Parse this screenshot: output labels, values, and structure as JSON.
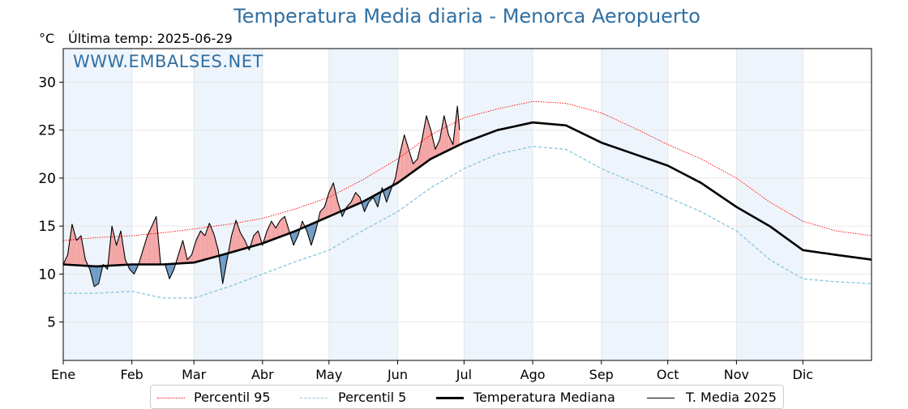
{
  "title": "Temperatura Media diaria - Menorca Aeropuerto",
  "unit": "°C",
  "last_temp_label": "Última temp: 2025-06-29",
  "watermark": "WWW.EMBALSES.NET",
  "legend": {
    "p95": "Percentil 95",
    "p5": "Percentil 5",
    "median": "Temperatura Mediana",
    "current": "T. Media 2025"
  },
  "colors": {
    "p95": "#ff0000",
    "p5": "#87c5e0",
    "median": "#000000",
    "current": "#000000",
    "above_fill": "#f4a6a6",
    "below_fill": "#6f9cc4",
    "month_band": "#eef4fb"
  },
  "chart_data": {
    "type": "line",
    "title": "Temperatura Media diaria - Menorca Aeropuerto",
    "xlabel": "",
    "ylabel": "°C",
    "ylim": [
      1,
      33.5
    ],
    "yticks": [
      5,
      10,
      15,
      20,
      25,
      30
    ],
    "xlim": [
      0,
      365
    ],
    "month_ticks": [
      {
        "label": "Ene",
        "day": 0
      },
      {
        "label": "Feb",
        "day": 31
      },
      {
        "label": "Mar",
        "day": 59
      },
      {
        "label": "Abr",
        "day": 90
      },
      {
        "label": "May",
        "day": 120
      },
      {
        "label": "Jun",
        "day": 151
      },
      {
        "label": "Jul",
        "day": 181
      },
      {
        "label": "Ago",
        "day": 212
      },
      {
        "label": "Sep",
        "day": 243
      },
      {
        "label": "Oct",
        "day": 273
      },
      {
        "label": "Nov",
        "day": 304
      },
      {
        "label": "Dic",
        "day": 334
      }
    ],
    "grid": true,
    "legend_position": "bottom",
    "series": [
      {
        "name": "Percentil 95",
        "style": "dotted",
        "x": [
          0,
          15,
          31,
          45,
          59,
          75,
          90,
          105,
          120,
          135,
          151,
          166,
          181,
          196,
          212,
          227,
          243,
          258,
          273,
          288,
          304,
          319,
          334,
          349,
          365
        ],
        "y": [
          13.5,
          13.8,
          14.0,
          14.3,
          14.7,
          15.2,
          15.8,
          16.8,
          18.0,
          19.8,
          22.0,
          24.5,
          26.3,
          27.2,
          28.0,
          27.8,
          26.8,
          25.2,
          23.5,
          22.0,
          20.0,
          17.5,
          15.5,
          14.5,
          14.0
        ]
      },
      {
        "name": "Percentil 5",
        "style": "dashed",
        "x": [
          0,
          15,
          31,
          45,
          59,
          75,
          90,
          105,
          120,
          135,
          151,
          166,
          181,
          196,
          212,
          227,
          243,
          258,
          273,
          288,
          304,
          319,
          334,
          349,
          365
        ],
        "y": [
          8.0,
          8.0,
          8.2,
          7.5,
          7.5,
          8.7,
          10.0,
          11.3,
          12.5,
          14.5,
          16.5,
          19.0,
          21.0,
          22.5,
          23.3,
          23.0,
          21.0,
          19.5,
          18.0,
          16.5,
          14.5,
          11.5,
          9.5,
          9.2,
          9.0
        ]
      },
      {
        "name": "Temperatura Mediana",
        "style": "solid-thick",
        "x": [
          0,
          15,
          31,
          45,
          59,
          75,
          90,
          105,
          120,
          135,
          151,
          166,
          181,
          196,
          212,
          227,
          243,
          258,
          273,
          288,
          304,
          319,
          334,
          349,
          365
        ],
        "y": [
          11.0,
          10.8,
          11.0,
          11.0,
          11.2,
          12.2,
          13.2,
          14.5,
          16.0,
          17.5,
          19.5,
          22.0,
          23.7,
          25.0,
          25.8,
          25.5,
          23.7,
          22.5,
          21.3,
          19.5,
          17.0,
          15.0,
          12.5,
          12.0,
          11.5
        ]
      },
      {
        "name": "T. Media 2025",
        "style": "solid",
        "x": [
          0,
          2,
          4,
          6,
          8,
          10,
          12,
          14,
          16,
          18,
          20,
          22,
          24,
          26,
          28,
          30,
          32,
          34,
          36,
          38,
          40,
          42,
          44,
          46,
          48,
          50,
          52,
          54,
          56,
          58,
          60,
          62,
          64,
          66,
          68,
          70,
          72,
          74,
          76,
          78,
          80,
          82,
          84,
          86,
          88,
          90,
          92,
          94,
          96,
          98,
          100,
          102,
          104,
          106,
          108,
          110,
          112,
          114,
          116,
          118,
          120,
          122,
          124,
          126,
          128,
          130,
          132,
          134,
          136,
          138,
          140,
          142,
          144,
          146,
          148,
          150,
          152,
          154,
          156,
          158,
          160,
          162,
          164,
          166,
          168,
          170,
          172,
          174,
          176,
          178,
          179
        ],
        "y": [
          11.0,
          12.0,
          15.2,
          13.5,
          14.0,
          11.5,
          10.5,
          8.7,
          9.0,
          11.0,
          10.5,
          15.0,
          13.0,
          14.5,
          11.5,
          10.5,
          10.0,
          11.0,
          12.5,
          14.0,
          15.0,
          16.0,
          11.0,
          11.0,
          9.5,
          10.5,
          12.0,
          13.5,
          11.5,
          12.0,
          13.5,
          14.5,
          14.0,
          15.3,
          14.2,
          12.5,
          9.0,
          11.5,
          14.0,
          15.6,
          14.3,
          13.5,
          12.5,
          14.0,
          14.5,
          13.0,
          14.5,
          15.5,
          14.8,
          15.6,
          16.0,
          14.5,
          13.0,
          14.0,
          15.5,
          14.5,
          13.0,
          14.5,
          16.5,
          17.0,
          18.5,
          19.5,
          17.5,
          16.0,
          17.0,
          17.5,
          18.5,
          18.0,
          16.5,
          17.5,
          18.0,
          17.0,
          19.0,
          17.5,
          18.8,
          20.0,
          22.5,
          24.5,
          23.0,
          21.5,
          22.0,
          24.0,
          26.5,
          25.0,
          23.0,
          24.0,
          26.5,
          24.5,
          23.5,
          27.5,
          25.0
        ]
      }
    ]
  }
}
